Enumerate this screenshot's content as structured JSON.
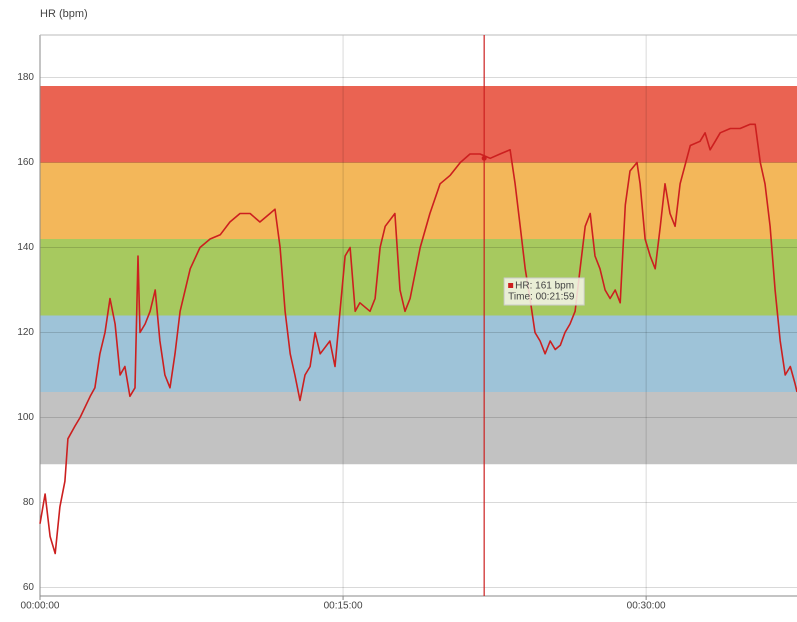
{
  "chart_data": {
    "type": "line",
    "title": "HR (bpm)",
    "xlim": [
      0,
      2248
    ],
    "xticks": [
      {
        "value": 0,
        "label": "00:00:00"
      },
      {
        "value": 900,
        "label": "00:15:00"
      },
      {
        "value": 1800,
        "label": "00:30:00"
      }
    ],
    "ylim": [
      58,
      190
    ],
    "yticks": [
      60,
      80,
      100,
      120,
      140,
      160,
      180
    ],
    "grid": true,
    "zones": [
      {
        "from": 89,
        "to": 106,
        "color": "#c2c2c2"
      },
      {
        "from": 106,
        "to": 124,
        "color": "#9ec3d8"
      },
      {
        "from": 124,
        "to": 142,
        "color": "#a7c95f"
      },
      {
        "from": 142,
        "to": 160,
        "color": "#f3b75a"
      },
      {
        "from": 160,
        "to": 178,
        "color": "#ea6352"
      }
    ],
    "series": [
      {
        "name": "HR",
        "color": "#cc1f1f",
        "x": [
          0,
          15,
          30,
          45,
          59,
          74,
          83,
          104,
          119,
          149,
          163,
          178,
          193,
          208,
          223,
          238,
          252,
          267,
          282,
          291,
          297,
          312,
          327,
          342,
          356,
          371,
          386,
          401,
          416,
          446,
          475,
          505,
          535,
          564,
          594,
          624,
          653,
          683,
          698,
          713,
          728,
          743,
          757,
          772,
          787,
          802,
          817,
          832,
          861,
          876,
          891,
          906,
          921,
          936,
          950,
          980,
          995,
          1010,
          1025,
          1054,
          1069,
          1084,
          1099,
          1129,
          1158,
          1188,
          1218,
          1248,
          1277,
          1307,
          1337,
          1366,
          1396,
          1411,
          1426,
          1441,
          1455,
          1470,
          1485,
          1500,
          1515,
          1530,
          1545,
          1559,
          1574,
          1589,
          1604,
          1619,
          1634,
          1648,
          1663,
          1678,
          1693,
          1708,
          1723,
          1738,
          1752,
          1773,
          1782,
          1797,
          1812,
          1827,
          1842,
          1856,
          1871,
          1886,
          1901,
          1931,
          1960,
          1975,
          1990,
          2005,
          2020,
          2050,
          2079,
          2109,
          2124,
          2139,
          2153,
          2168,
          2183,
          2198,
          2213,
          2228,
          2242,
          2248
        ],
        "values": [
          75,
          82,
          72,
          68,
          79,
          85,
          95,
          98,
          100,
          105,
          107,
          115,
          120,
          128,
          122,
          110,
          112,
          105,
          107,
          138,
          120,
          122,
          125,
          130,
          118,
          110,
          107,
          115,
          125,
          135,
          140,
          142,
          143,
          146,
          148,
          148,
          146,
          148,
          149,
          140,
          125,
          115,
          110,
          104,
          110,
          112,
          120,
          115,
          118,
          112,
          125,
          138,
          140,
          125,
          127,
          125,
          128,
          140,
          145,
          148,
          130,
          125,
          128,
          140,
          148,
          155,
          157,
          160,
          162,
          162,
          161,
          162,
          163,
          155,
          145,
          135,
          128,
          120,
          118,
          115,
          118,
          116,
          117,
          120,
          122,
          125,
          135,
          145,
          148,
          138,
          135,
          130,
          128,
          130,
          127,
          150,
          158,
          160,
          155,
          142,
          138,
          135,
          145,
          155,
          148,
          145,
          155,
          164,
          165,
          167,
          163,
          165,
          167,
          168,
          168,
          169,
          169,
          160,
          155,
          145,
          130,
          118,
          110,
          112,
          108,
          106
        ]
      }
    ],
    "tooltip": {
      "x": 1319,
      "value": 161,
      "lines": [
        "HR: 161 bpm",
        "Time: 00:21:59"
      ]
    }
  }
}
